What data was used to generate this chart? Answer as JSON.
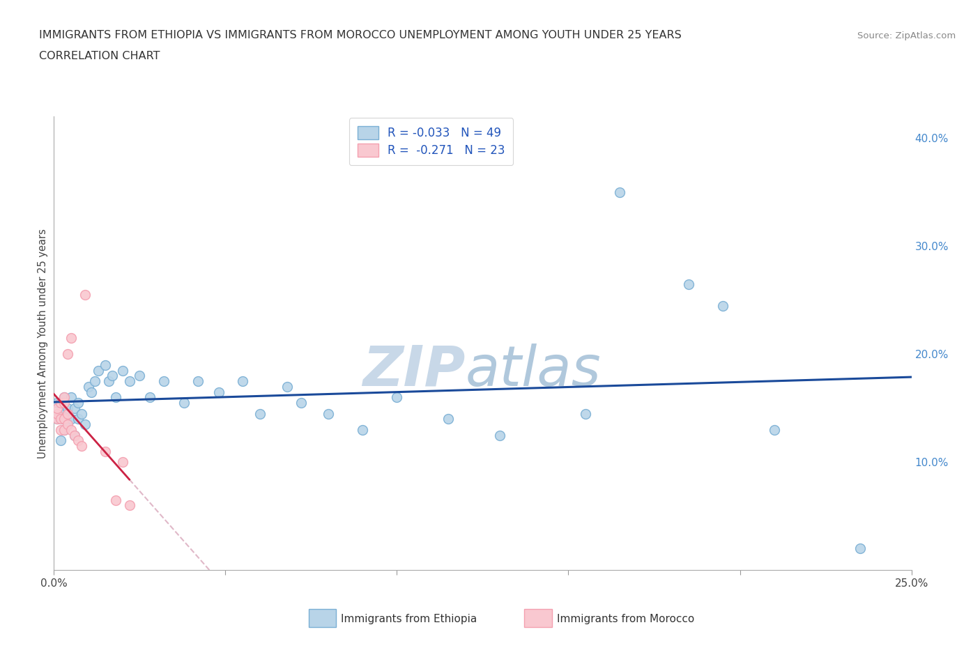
{
  "title_line1": "IMMIGRANTS FROM ETHIOPIA VS IMMIGRANTS FROM MOROCCO UNEMPLOYMENT AMONG YOUTH UNDER 25 YEARS",
  "title_line2": "CORRELATION CHART",
  "source_text": "Source: ZipAtlas.com",
  "ylabel": "Unemployment Among Youth under 25 years",
  "xlim": [
    0.0,
    0.25
  ],
  "ylim": [
    0.0,
    0.42
  ],
  "x_tick_positions": [
    0.0,
    0.05,
    0.1,
    0.15,
    0.2,
    0.25
  ],
  "x_tick_labels": [
    "0.0%",
    "",
    "",
    "",
    "",
    "25.0%"
  ],
  "y_ticks_right": [
    0.1,
    0.2,
    0.3,
    0.4
  ],
  "y_tick_labels_right": [
    "10.0%",
    "20.0%",
    "30.0%",
    "40.0%"
  ],
  "ethiopia_color": "#7AAFD4",
  "ethiopia_color_fill": "#B8D4E8",
  "morocco_color": "#F4A0B0",
  "morocco_color_fill": "#F9C8D0",
  "regression_ethiopia_color": "#1A4A9A",
  "regression_morocco_color": "#CC2244",
  "regression_morocco_dashed_color": "#E0B8C8",
  "grid_color": "#CCCCCC",
  "title_color": "#333333",
  "right_axis_color": "#4488CC",
  "watermark_color_zip": "#C8D8E8",
  "watermark_color_atlas": "#B0C8DC",
  "legend_label1": "R = -0.033   N = 49",
  "legend_label2": "R =  -0.271   N = 23",
  "ethiopia_x": [
    0.001,
    0.001,
    0.002,
    0.002,
    0.002,
    0.003,
    0.003,
    0.003,
    0.004,
    0.004,
    0.005,
    0.005,
    0.006,
    0.006,
    0.007,
    0.007,
    0.008,
    0.009,
    0.01,
    0.011,
    0.012,
    0.013,
    0.015,
    0.016,
    0.017,
    0.018,
    0.02,
    0.022,
    0.025,
    0.028,
    0.032,
    0.038,
    0.042,
    0.048,
    0.055,
    0.06,
    0.068,
    0.072,
    0.08,
    0.09,
    0.1,
    0.115,
    0.13,
    0.155,
    0.165,
    0.185,
    0.195,
    0.21,
    0.235
  ],
  "ethiopia_y": [
    0.14,
    0.155,
    0.12,
    0.14,
    0.155,
    0.13,
    0.145,
    0.16,
    0.135,
    0.15,
    0.14,
    0.16,
    0.125,
    0.15,
    0.14,
    0.155,
    0.145,
    0.135,
    0.17,
    0.165,
    0.175,
    0.185,
    0.19,
    0.175,
    0.18,
    0.16,
    0.185,
    0.175,
    0.18,
    0.16,
    0.175,
    0.155,
    0.175,
    0.165,
    0.175,
    0.145,
    0.17,
    0.155,
    0.145,
    0.13,
    0.16,
    0.14,
    0.125,
    0.145,
    0.35,
    0.265,
    0.245,
    0.13,
    0.02
  ],
  "morocco_x": [
    0.001,
    0.001,
    0.001,
    0.002,
    0.002,
    0.002,
    0.003,
    0.003,
    0.003,
    0.003,
    0.004,
    0.004,
    0.004,
    0.005,
    0.005,
    0.006,
    0.007,
    0.008,
    0.009,
    0.015,
    0.018,
    0.02,
    0.022
  ],
  "morocco_y": [
    0.14,
    0.145,
    0.15,
    0.13,
    0.14,
    0.155,
    0.13,
    0.14,
    0.155,
    0.16,
    0.135,
    0.145,
    0.2,
    0.215,
    0.13,
    0.125,
    0.12,
    0.115,
    0.255,
    0.11,
    0.065,
    0.1,
    0.06
  ]
}
